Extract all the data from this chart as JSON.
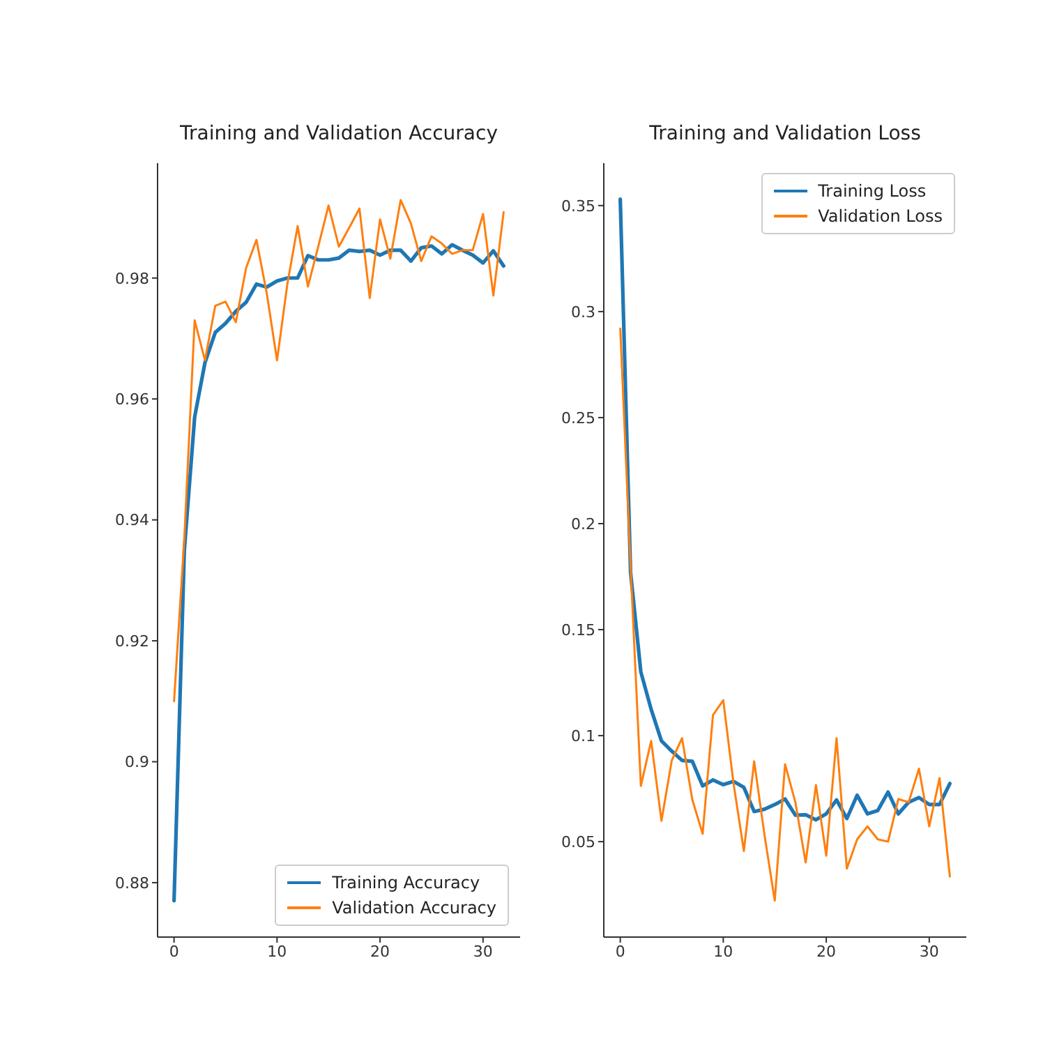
{
  "chart_data": [
    {
      "type": "line",
      "title": "Training and Validation Accuracy",
      "x": [
        0,
        1,
        2,
        3,
        4,
        5,
        6,
        7,
        8,
        9,
        10,
        11,
        12,
        13,
        14,
        15,
        16,
        17,
        18,
        19,
        20,
        21,
        22,
        23,
        24,
        25,
        26,
        27,
        28,
        29,
        30,
        31,
        32
      ],
      "xlim": [
        -1.6,
        33.6
      ],
      "xticks": [
        0,
        10,
        20,
        30
      ],
      "ylim": [
        0.871,
        0.999
      ],
      "yticks": [
        0.88,
        0.9,
        0.92,
        0.94,
        0.96,
        0.98
      ],
      "legend": "bottom right",
      "series": [
        {
          "name": "Training Accuracy",
          "color": "#1f77b4",
          "values": [
            0.877,
            0.935,
            0.957,
            0.966,
            0.971,
            0.9725,
            0.9745,
            0.976,
            0.979,
            0.9785,
            0.9795,
            0.98,
            0.98,
            0.9837,
            0.983,
            0.983,
            0.9833,
            0.9846,
            0.9844,
            0.9846,
            0.9838,
            0.9846,
            0.9846,
            0.9828,
            0.985,
            0.9853,
            0.984,
            0.9855,
            0.9846,
            0.9838,
            0.9825,
            0.9845,
            0.982
          ]
        },
        {
          "name": "Validation Accuracy",
          "color": "#ff7f0e",
          "values": [
            0.91,
            0.937,
            0.973,
            0.9664,
            0.9754,
            0.9761,
            0.9727,
            0.9817,
            0.9863,
            0.9775,
            0.9664,
            0.979,
            0.9886,
            0.9786,
            0.9852,
            0.992,
            0.9852,
            0.9883,
            0.9915,
            0.9767,
            0.9897,
            0.9832,
            0.9929,
            0.989,
            0.9828,
            0.9869,
            0.9857,
            0.984,
            0.9846,
            0.9846,
            0.9906,
            0.9771,
            0.9909
          ]
        }
      ]
    },
    {
      "type": "line",
      "title": "Training and Validation Loss",
      "x": [
        0,
        1,
        2,
        3,
        4,
        5,
        6,
        7,
        8,
        9,
        10,
        11,
        12,
        13,
        14,
        15,
        16,
        17,
        18,
        19,
        20,
        21,
        22,
        23,
        24,
        25,
        26,
        27,
        28,
        29,
        30,
        31,
        32
      ],
      "xlim": [
        -1.6,
        33.6
      ],
      "xticks": [
        0,
        10,
        20,
        30
      ],
      "ylim": [
        0.005,
        0.37
      ],
      "yticks": [
        0.05,
        0.1,
        0.15,
        0.2,
        0.25,
        0.3,
        0.35
      ],
      "legend": "top right",
      "series": [
        {
          "name": "Training Loss",
          "color": "#1f77b4",
          "values": [
            0.353,
            0.177,
            0.13,
            0.1124,
            0.0975,
            0.0927,
            0.0883,
            0.0879,
            0.0763,
            0.0791,
            0.0769,
            0.0784,
            0.0756,
            0.0642,
            0.0653,
            0.0675,
            0.0701,
            0.0625,
            0.0627,
            0.0603,
            0.0631,
            0.0697,
            0.0609,
            0.0719,
            0.0631,
            0.0647,
            0.0734,
            0.0631,
            0.0686,
            0.0708,
            0.0675,
            0.0675,
            0.0774
          ]
        },
        {
          "name": "Validation Loss",
          "color": "#ff7f0e",
          "values": [
            0.292,
            0.18,
            0.0763,
            0.0975,
            0.0598,
            0.0883,
            0.0988,
            0.0697,
            0.0537,
            0.1097,
            0.1167,
            0.0774,
            0.0456,
            0.0879,
            0.0533,
            0.0222,
            0.0865,
            0.0686,
            0.0402,
            0.0767,
            0.0434,
            0.0988,
            0.0373,
            0.0511,
            0.0572,
            0.0511,
            0.05,
            0.0701,
            0.0686,
            0.0844,
            0.0572,
            0.08,
            0.0336
          ]
        }
      ]
    }
  ]
}
